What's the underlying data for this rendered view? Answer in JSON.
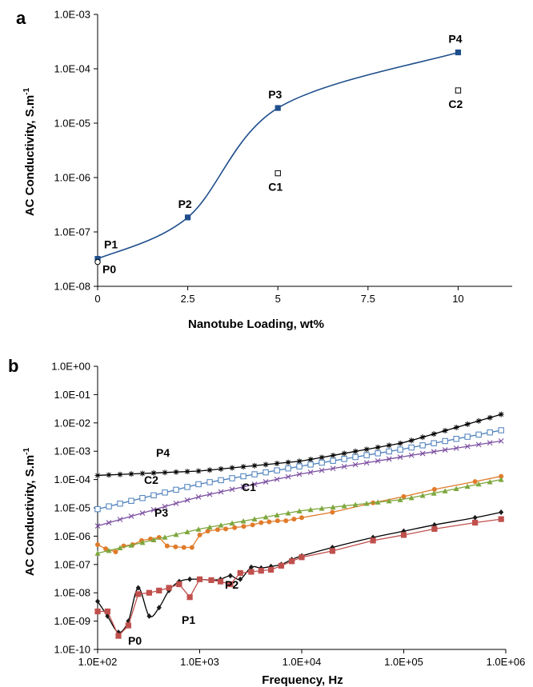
{
  "chart_data": [
    {
      "panel_label": "a",
      "type": "scatter",
      "xlabel": "Nanotube Loading, wt%",
      "ylabel": "AC Conductivity, S.m",
      "ylabel_superscript": "-1",
      "x_ticks": [
        "0",
        "2.5",
        "5",
        "7.5",
        "10"
      ],
      "y_ticks": [
        "1.0E-08",
        "1.0E-07",
        "1.0E-06",
        "1.0E-05",
        "1.0E-04",
        "1.0E-03"
      ],
      "xlim": [
        0,
        11.5
      ],
      "ylim": [
        1e-08,
        0.001
      ],
      "y_scale": "log",
      "grid": false,
      "colors": {
        "curve": "#1f4e8c",
        "marker": "#1f4e8c"
      },
      "series": [
        {
          "points": [
            {
              "label": "P1",
              "x": 0,
              "y": 3.2e-08
            },
            {
              "label": "P2",
              "x": 2.5,
              "y": 1.85e-07
            },
            {
              "label": "P3",
              "x": 5,
              "y": 1.9e-05
            },
            {
              "label": "P4",
              "x": 10,
              "y": 0.0002
            }
          ],
          "marker": "filled-square",
          "fit_line": true
        },
        {
          "points": [
            {
              "label": "C1",
              "x": 5,
              "y": 1.2e-06
            },
            {
              "label": "C2",
              "x": 10,
              "y": 4e-05
            }
          ],
          "marker": "open-square"
        },
        {
          "points": [
            {
              "label": "P0",
              "x": 0,
              "y": 2.8e-08
            }
          ],
          "marker": "open-circle"
        }
      ]
    },
    {
      "panel_label": "b",
      "type": "line",
      "xlabel": "Frequency, Hz",
      "ylabel": "AC Conductivity, S.m",
      "ylabel_superscript": "-1",
      "x_scale": "log",
      "y_scale": "log",
      "x_ticks": [
        "1.0E+02",
        "1.0E+03",
        "1.0E+04",
        "1.0E+05",
        "1.0E+06"
      ],
      "y_ticks": [
        "1.0E-10",
        "1.0E-09",
        "1.0E-08",
        "1.0E-07",
        "1.0E-06",
        "1.0E-05",
        "1.0E-04",
        "1.0E-03",
        "1.0E-02",
        "1.0E-01",
        "1.0E+00"
      ],
      "xlim": [
        100,
        1000000
      ],
      "ylim": [
        1e-10,
        1
      ],
      "grid": false,
      "series": [
        {
          "name": "P4",
          "color": "#000000",
          "marker": "star",
          "x": [
            100,
            1000,
            10000,
            100000,
            900000
          ],
          "y": [
            0.00014,
            0.0002,
            0.00045,
            0.002,
            0.02
          ]
        },
        {
          "name": "C2",
          "color": "#4a7ebb",
          "marker": "open-square",
          "x": [
            100,
            1000,
            10000,
            100000,
            900000
          ],
          "y": [
            9e-06,
            7e-05,
            0.0003,
            0.0012,
            0.0055
          ]
        },
        {
          "name": "P3",
          "color": "#7b4fa0",
          "marker": "cross",
          "x": [
            100,
            1000,
            10000,
            100000,
            900000
          ],
          "y": [
            2.3e-06,
            2.5e-05,
            0.00016,
            0.00065,
            0.0023
          ]
        },
        {
          "name": "C1",
          "color": "#e07b2a",
          "marker": "filled-circle",
          "x": [
            100,
            120,
            150,
            180,
            220,
            270,
            330,
            400,
            480,
            580,
            700,
            840,
            1000,
            1200,
            1500,
            1800,
            2200,
            2700,
            3300,
            4000,
            4800,
            5800,
            7000,
            8400,
            10000,
            20000,
            50000,
            100000,
            200000,
            500000,
            900000
          ],
          "y": [
            5e-07,
            3.6e-07,
            2.8e-07,
            4.5e-07,
            5e-07,
            7e-07,
            8e-07,
            9e-07,
            4.5e-07,
            4.2e-07,
            4e-07,
            4e-07,
            1.1e-06,
            1.5e-06,
            1.7e-06,
            1.8e-06,
            2e-06,
            2.2e-06,
            2.5e-06,
            3e-06,
            3.2e-06,
            3.5e-06,
            3.5e-06,
            4e-06,
            4.5e-06,
            7e-06,
            1.5e-05,
            2.5e-05,
            4.5e-05,
            8.5e-05,
            0.00013
          ]
        },
        {
          "name": "",
          "color": "#7da73e",
          "marker": "filled-triangle",
          "x": [
            100,
            1000,
            10000,
            100000,
            900000
          ],
          "y": [
            2.5e-07,
            1.8e-06,
            8e-06,
            2e-05,
            0.0001
          ]
        },
        {
          "name": "P0",
          "color": "#1a1a1a",
          "marker": "filled-diamond",
          "x": [
            100,
            125,
            160,
            200,
            250,
            320,
            400,
            500,
            630,
            800,
            1000,
            1300,
            1600,
            2000,
            2500,
            3200,
            4000,
            5000,
            6300,
            8000,
            10000,
            20000,
            50000,
            100000,
            200000,
            500000,
            900000
          ],
          "y": [
            5e-09,
            1.5e-09,
            4e-10,
            1e-09,
            1.5e-08,
            1.5e-09,
            3e-09,
            1.2e-08,
            2.5e-08,
            3e-08,
            3e-08,
            2.8e-08,
            3e-08,
            4e-08,
            3e-08,
            8e-08,
            7.5e-08,
            8.5e-08,
            1e-07,
            1.5e-07,
            2e-07,
            4e-07,
            9e-07,
            1.5e-06,
            2.5e-06,
            4.5e-06,
            7e-06
          ]
        },
        {
          "name": "P1",
          "color": "#c0504d",
          "marker": "filled-square",
          "x": [
            100,
            125,
            160,
            200,
            250,
            320,
            400,
            500,
            630,
            800,
            1000,
            1300,
            1600,
            2000,
            2500,
            3200,
            4000,
            5000,
            6300,
            8000,
            10000,
            20000,
            50000,
            100000,
            200000,
            500000,
            900000
          ],
          "y": [
            2.2e-09,
            2.2e-09,
            3e-10,
            7e-10,
            9e-09,
            1e-08,
            1.2e-08,
            1.5e-08,
            2e-08,
            7e-09,
            3e-08,
            2.8e-08,
            2.5e-08,
            2e-08,
            5e-08,
            5.5e-08,
            6e-08,
            6.5e-08,
            9e-08,
            1.3e-07,
            1.8e-07,
            3e-07,
            7e-07,
            1.1e-06,
            1.8e-06,
            3e-06,
            4e-06
          ]
        }
      ],
      "annotations": [
        "P4",
        "C2",
        "P3",
        "C1",
        "P2",
        "P1",
        "P0"
      ]
    }
  ]
}
